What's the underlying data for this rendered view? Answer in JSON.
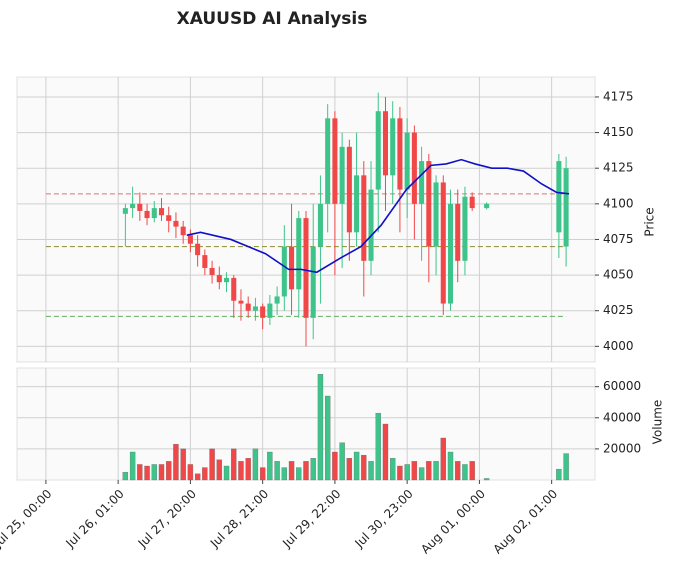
{
  "chart_data": {
    "type": "candlestick",
    "title": "XAUUSD AI Analysis",
    "ylabel": "Price",
    "y2label": "Volume",
    "up_color": "#3ec48a",
    "down_color": "#f04848",
    "sma_color": "#1010c8",
    "grid": true,
    "xlim": [
      -4,
      76
    ],
    "xticks": [
      {
        "value": 0,
        "label": "Jul 25, 00:00"
      },
      {
        "value": 10,
        "label": "Jul 26, 01:00"
      },
      {
        "value": 20,
        "label": "Jul 27, 20:00"
      },
      {
        "value": 30,
        "label": "Jul 28, 21:00"
      },
      {
        "value": 40,
        "label": "Jul 29, 22:00"
      },
      {
        "value": 50,
        "label": "Jul 30, 23:00"
      },
      {
        "value": 60,
        "label": "Aug 01, 00:00"
      },
      {
        "value": 70,
        "label": "Aug 02, 01:00"
      }
    ],
    "ylim": [
      3989,
      4189
    ],
    "yticks": [
      4000,
      4025,
      4050,
      4075,
      4100,
      4125,
      4150,
      4175
    ],
    "y2lim": [
      0,
      72000
    ],
    "y2ticks": [
      20000,
      40000,
      60000
    ],
    "x": [
      11,
      12,
      13,
      14,
      15,
      16,
      17,
      18,
      19,
      20,
      21,
      22,
      23,
      24,
      25,
      26,
      27,
      28,
      29,
      30,
      31,
      32,
      33,
      34,
      35,
      36,
      37,
      38,
      39,
      40,
      41,
      42,
      43,
      44,
      45,
      46,
      47,
      48,
      49,
      50,
      51,
      52,
      53,
      54,
      55,
      56,
      57,
      58,
      59,
      61,
      71,
      72
    ],
    "open": [
      4093,
      4097,
      4100,
      4095,
      4090,
      4097,
      4092,
      4088,
      4084,
      4078,
      4072,
      4064,
      4055,
      4050,
      4045,
      4048,
      4032,
      4030,
      4025,
      4028,
      4020,
      4030,
      4035,
      4070,
      4040,
      4090,
      4020,
      4070,
      4100,
      4160,
      4100,
      4140,
      4080,
      4120,
      4060,
      4110,
      4165,
      4120,
      4160,
      4110,
      4150,
      4100,
      4130,
      4070,
      4115,
      4030,
      4100,
      4060,
      4105,
      4097,
      4080,
      4070
    ],
    "high": [
      4100,
      4112,
      4108,
      4100,
      4102,
      4104,
      4098,
      4094,
      4088,
      4082,
      4078,
      4068,
      4060,
      4056,
      4052,
      4050,
      4040,
      4035,
      4034,
      4030,
      4036,
      4042,
      4085,
      4100,
      4095,
      4095,
      4100,
      4120,
      4170,
      4165,
      4150,
      4145,
      4150,
      4130,
      4130,
      4178,
      4175,
      4172,
      4168,
      4160,
      4155,
      4140,
      4135,
      4120,
      4120,
      4110,
      4110,
      4112,
      4108,
      4101,
      4135,
      4133
    ],
    "low": [
      4070,
      4090,
      4088,
      4085,
      4087,
      4088,
      4080,
      4076,
      4072,
      4066,
      4056,
      4050,
      4044,
      4040,
      4038,
      4020,
      4018,
      4020,
      4018,
      4012,
      4015,
      4022,
      4025,
      4022,
      4020,
      4000,
      4005,
      4030,
      4080,
      4050,
      4055,
      4060,
      4070,
      4035,
      4050,
      4080,
      4095,
      4100,
      4080,
      4090,
      4075,
      4060,
      4045,
      4050,
      4022,
      4025,
      4045,
      4050,
      4095,
      4096,
      4062,
      4056
    ],
    "close": [
      4097,
      4100,
      4095,
      4090,
      4097,
      4092,
      4088,
      4084,
      4078,
      4072,
      4064,
      4055,
      4050,
      4045,
      4048,
      4032,
      4030,
      4025,
      4028,
      4020,
      4030,
      4035,
      4070,
      4040,
      4090,
      4020,
      4070,
      4100,
      4160,
      4100,
      4140,
      4080,
      4120,
      4060,
      4110,
      4165,
      4120,
      4160,
      4110,
      4150,
      4100,
      4130,
      4070,
      4115,
      4030,
      4100,
      4060,
      4105,
      4097,
      4100,
      4130,
      4125
    ],
    "volume": [
      5000,
      18000,
      10000,
      9000,
      10000,
      10000,
      12000,
      23000,
      20000,
      10000,
      4000,
      8000,
      20000,
      13000,
      9000,
      20000,
      12000,
      14000,
      20000,
      8000,
      18000,
      12000,
      8000,
      12000,
      8000,
      12000,
      14000,
      68000,
      54000,
      18000,
      24000,
      14000,
      18000,
      16000,
      12000,
      43000,
      36000,
      14000,
      9000,
      10000,
      12000,
      8000,
      12000,
      12000,
      27000,
      18000,
      12000,
      10000,
      12000,
      1000,
      7000,
      17000
    ],
    "sma_x": [
      19.5,
      21.4,
      25.6,
      30.4,
      33.6,
      35.3,
      37.5,
      40.8,
      43.6,
      46.4,
      49.9,
      53.3,
      55.4,
      57.5,
      59.4,
      61.7,
      63.9,
      66.1,
      68.6,
      70.7,
      72.4
    ],
    "sma_values": [
      4078,
      4080,
      4075,
      4065,
      4054,
      4054,
      4052,
      4062,
      4070,
      4085,
      4110,
      4127,
      4128,
      4131,
      4128,
      4125,
      4125,
      4123,
      4114,
      4108,
      4107
    ],
    "hlines": [
      {
        "value": 4107,
        "color": "#e07070"
      },
      {
        "value": 4070,
        "color": "#8a8a30"
      },
      {
        "value": 4021,
        "color": "#60b060"
      }
    ]
  }
}
